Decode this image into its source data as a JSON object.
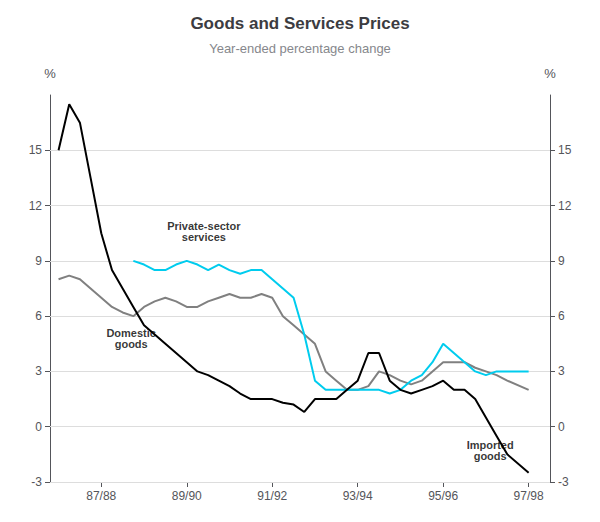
{
  "chart_data": {
    "type": "line",
    "title": "Goods and Services Prices",
    "subtitle": "Year-ended percentage change",
    "ylabel": "%",
    "y2label": "%",
    "xlim": [
      1986.3,
      1998.0
    ],
    "xticks": [
      {
        "value": 1987.5,
        "label": "87/88"
      },
      {
        "value": 1989.5,
        "label": "89/90"
      },
      {
        "value": 1991.5,
        "label": "91/92"
      },
      {
        "value": 1993.5,
        "label": "93/94"
      },
      {
        "value": 1995.5,
        "label": "95/96"
      },
      {
        "value": 1997.5,
        "label": "97/98"
      }
    ],
    "ylim": [
      -3,
      18
    ],
    "yticks": [
      -3,
      0,
      3,
      6,
      9,
      12,
      15
    ],
    "y2lim": [
      -3,
      18
    ],
    "y2ticks": [
      -3,
      0,
      3,
      6,
      9,
      12,
      15
    ],
    "grid": true,
    "x": [
      1986.5,
      1986.75,
      1987.0,
      1987.25,
      1987.5,
      1987.75,
      1988.0,
      1988.25,
      1988.5,
      1988.75,
      1989.0,
      1989.25,
      1989.5,
      1989.75,
      1990.0,
      1990.25,
      1990.5,
      1990.75,
      1991.0,
      1991.25,
      1991.5,
      1991.75,
      1992.0,
      1992.25,
      1992.5,
      1992.75,
      1993.0,
      1993.25,
      1993.5,
      1993.75,
      1994.0,
      1994.25,
      1994.5,
      1994.75,
      1995.0,
      1995.25,
      1995.5,
      1995.75,
      1996.0,
      1996.25,
      1996.5,
      1996.75,
      1997.0,
      1997.5
    ],
    "series": [
      {
        "color": "#808080",
        "values": [
          8.0,
          8.2,
          8.0,
          7.5,
          7.0,
          6.5,
          6.2,
          6.0,
          6.5,
          6.8,
          7.0,
          6.8,
          6.5,
          6.5,
          6.8,
          7.0,
          7.2,
          7.0,
          7.0,
          7.2,
          7.0,
          6.0,
          5.5,
          5.0,
          4.5,
          3.0,
          2.5,
          2.0,
          2.0,
          2.2,
          3.0,
          2.8,
          2.5,
          2.3,
          2.5,
          3.0,
          3.5,
          3.5,
          3.5,
          3.2,
          3.0,
          2.8,
          2.5,
          2.0
        ]
      },
      {
        "color": "#00ccee",
        "values": [
          null,
          null,
          null,
          null,
          null,
          null,
          null,
          9.0,
          8.8,
          8.5,
          8.5,
          8.8,
          9.0,
          8.8,
          8.5,
          8.8,
          8.5,
          8.3,
          8.5,
          8.5,
          8.0,
          7.5,
          7.0,
          5.0,
          2.5,
          2.0,
          2.0,
          2.0,
          2.0,
          2.0,
          2.0,
          1.8,
          2.0,
          2.5,
          2.8,
          3.5,
          4.5,
          4.0,
          3.5,
          3.0,
          2.8,
          3.0,
          3.0,
          3.0
        ]
      },
      {
        "color": "#000000",
        "values": [
          15.0,
          17.5,
          16.5,
          13.5,
          10.5,
          8.5,
          7.5,
          6.5,
          5.5,
          5.0,
          4.5,
          4.0,
          3.5,
          3.0,
          2.8,
          2.5,
          2.2,
          1.8,
          1.5,
          1.5,
          1.5,
          1.3,
          1.2,
          0.8,
          1.5,
          1.5,
          1.5,
          2.0,
          2.5,
          4.0,
          4.0,
          2.5,
          2.0,
          1.8,
          2.0,
          2.2,
          2.5,
          2.0,
          2.0,
          1.5,
          0.5,
          -0.5,
          -1.5,
          -2.5
        ]
      }
    ],
    "annotations": [
      {
        "text": "Domestic\ngoods",
        "x": 1988.2,
        "y": 4.8
      },
      {
        "text": "Private-sector\nservices",
        "x": 1989.9,
        "y": 10.6
      },
      {
        "text": "Imported\ngoods",
        "x": 1996.6,
        "y": -1.3
      }
    ]
  }
}
